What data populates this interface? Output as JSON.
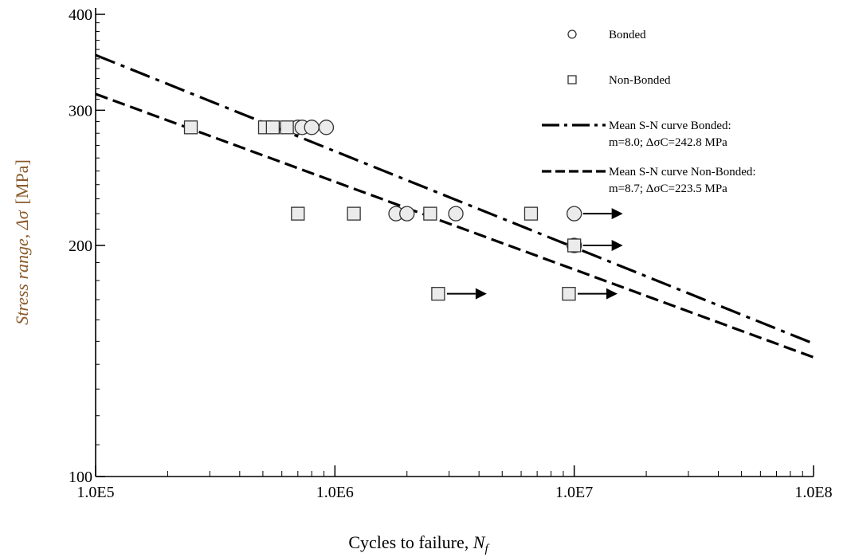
{
  "chart_data": {
    "type": "scatter",
    "title": "",
    "xlabel": {
      "main": "Cycles to failure, ",
      "symbol": "N",
      "subscript": "f"
    },
    "ylabel": {
      "main": "Stress range, ",
      "symbol": "Δσ",
      "unit": "[MPa]"
    },
    "x_scale": "log",
    "y_scale": "log",
    "xlim": [
      100000,
      100000000
    ],
    "ylim": [
      100,
      400
    ],
    "x_ticks": [
      {
        "value": 100000,
        "label": "1.0E5"
      },
      {
        "value": 1000000,
        "label": "1.0E6"
      },
      {
        "value": 10000000,
        "label": "1.0E7"
      },
      {
        "value": 100000000,
        "label": "1.0E8"
      }
    ],
    "y_ticks": [
      {
        "value": 100,
        "label": "100"
      },
      {
        "value": 200,
        "label": "200"
      },
      {
        "value": 300,
        "label": "300"
      },
      {
        "value": 400,
        "label": "400"
      }
    ],
    "grid": false,
    "legend_position": "top-right",
    "series": [
      {
        "name": "Bonded",
        "marker": "circle",
        "points": [
          {
            "x": 700000,
            "y": 285
          },
          {
            "x": 730000,
            "y": 285
          },
          {
            "x": 800000,
            "y": 285
          },
          {
            "x": 920000,
            "y": 285
          },
          {
            "x": 1800000,
            "y": 220
          },
          {
            "x": 2000000,
            "y": 220
          },
          {
            "x": 3200000,
            "y": 220
          }
        ],
        "runouts": [
          {
            "x": 10000000,
            "y": 220
          },
          {
            "x": 10000000,
            "y": 200
          }
        ]
      },
      {
        "name": "Non-Bonded",
        "marker": "square",
        "points": [
          {
            "x": 250000,
            "y": 285
          },
          {
            "x": 510000,
            "y": 285
          },
          {
            "x": 550000,
            "y": 285
          },
          {
            "x": 630000,
            "y": 285
          },
          {
            "x": 700000,
            "y": 220
          },
          {
            "x": 1200000,
            "y": 220
          },
          {
            "x": 2500000,
            "y": 220
          },
          {
            "x": 6600000,
            "y": 220
          }
        ],
        "runouts": [
          {
            "x": 10000000,
            "y": 200
          },
          {
            "x": 2700000,
            "y": 173
          },
          {
            "x": 9500000,
            "y": 173
          }
        ]
      }
    ],
    "curves": [
      {
        "name": "Mean S-N curve Bonded:",
        "detail": "m=8.0; ΔσC=242.8 MPa",
        "style": "dash-dot",
        "x": [
          100000,
          100000000
        ],
        "y": [
          354,
          149
        ]
      },
      {
        "name": "Mean S-N curve Non-Bonded:",
        "detail": "m=8.7; ΔσC=223.5 MPa",
        "style": "dashed",
        "x": [
          100000,
          100000000
        ],
        "y": [
          315,
          143
        ]
      }
    ]
  }
}
